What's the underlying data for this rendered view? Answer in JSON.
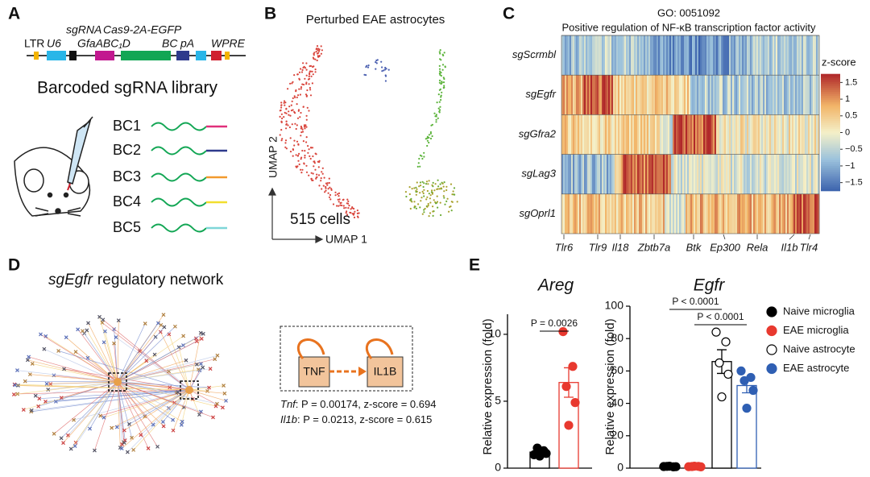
{
  "panels": {
    "A": {
      "letter": "A",
      "construct": {
        "sgRNA": "sgRNA",
        "cas9": "Cas9-2A-EGFP",
        "ltr": "LTR",
        "u6": "U6",
        "promoter": "GfaABC₁D",
        "bc": "BC",
        "pa": "pA",
        "wpre": "WPRE"
      },
      "library_title": "Barcoded sgRNA library",
      "barcodes": [
        "BC1",
        "BC2",
        "BC3",
        "BC4",
        "BC5"
      ]
    },
    "B": {
      "letter": "B",
      "title": "Perturbed EAE astrocytes",
      "y_axis": "UMAP 2",
      "x_axis": "UMAP 1",
      "cell_count": "515 cells"
    },
    "C": {
      "letter": "C",
      "go_id": "GO: 0051092",
      "title": "Positive regulation of NF-κB transcription factor activity",
      "rows": [
        "sgScrmbl",
        "sgEgfr",
        "sgGfra2",
        "sgLag3",
        "sgOprl1"
      ],
      "genes": [
        "Tlr6",
        "Tlr9",
        "Il18",
        "Zbtb7a",
        "Btk",
        "Ep300",
        "Rela",
        "Il1b",
        "Tlr4"
      ],
      "colorbar": {
        "title": "z-score",
        "lim": [
          -1.75,
          1.75
        ],
        "ticks": [
          1.5,
          1,
          0.5,
          0,
          {
            "value": -0.5,
            "label": "−0.5"
          },
          {
            "value": -1,
            "label": "−1"
          },
          {
            "value": -1.5,
            "label": "−1.5"
          }
        ]
      }
    },
    "D": {
      "letter": "D",
      "title_gene": "sgEgfr",
      "title_rest": "regulatory network",
      "nodes": [
        "TNF",
        "IL1B"
      ],
      "stats": [
        {
          "gene": "Tnf",
          "text": ": P = 0.00174, z-score = 0.694"
        },
        {
          "gene": "Il1b",
          "text": ": P = 0.0213, z-score = 0.615"
        }
      ]
    },
    "E": {
      "letter": "E"
    }
  },
  "chart_data": [
    {
      "type": "bar",
      "title": "Areg",
      "y_label": "Relative expression (fold)",
      "ylim": [
        0,
        11.5
      ],
      "yticks": [
        0,
        5,
        10
      ],
      "series": [
        {
          "color": "#000000",
          "marker_fill": "#000000",
          "value": 1.2,
          "error": 0.15,
          "points": [
            1.0,
            1.3,
            1.5,
            1.1,
            0.9
          ]
        },
        {
          "color": "#e8392f",
          "marker_fill": "#e8392f",
          "value": 6.4,
          "error": 1.1,
          "points": [
            10.2,
            7.6,
            6.1,
            4.9,
            3.2
          ]
        }
      ],
      "annotations": [
        "P = 0.0026"
      ]
    },
    {
      "type": "bar",
      "title": "Egfr",
      "y_label": "Relative expression (fold)",
      "ylim": [
        0,
        100
      ],
      "yticks": [
        0,
        20,
        40,
        60,
        80,
        100
      ],
      "series": [
        {
          "name": "Naive microglia",
          "color": "#000000",
          "marker_fill": "#000000",
          "value": 1,
          "error": 0.1,
          "points": [
            1.0,
            0.8,
            1.1,
            0.9,
            1.2
          ]
        },
        {
          "name": "EAE microglia",
          "color": "#e8392f",
          "marker_fill": "#e8392f",
          "value": 1,
          "error": 0.1,
          "points": [
            0.9,
            1.1,
            1.0,
            0.8,
            1.2
          ]
        },
        {
          "name": "Naive astrocyte",
          "color": "#000000",
          "marker_fill": "#ffffff",
          "value": 65.8,
          "error": 7.3,
          "points": [
            84,
            78,
            65,
            58,
            44
          ]
        },
        {
          "name": "EAE astrocyte",
          "color": "#2f5fb3",
          "marker_fill": "#2f5fb3",
          "value": 51,
          "error": 4.5,
          "points": [
            60,
            56,
            54,
            48,
            37
          ]
        }
      ],
      "annotations": [
        "P < 0.0001",
        "P < 0.0001"
      ]
    }
  ]
}
